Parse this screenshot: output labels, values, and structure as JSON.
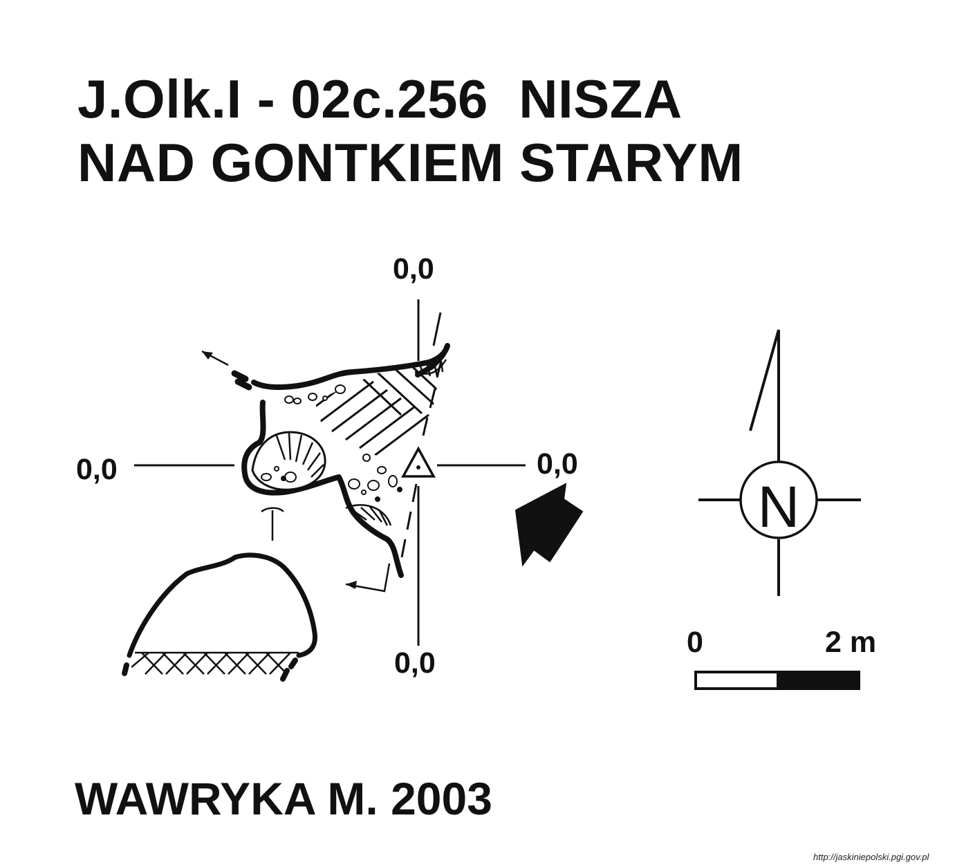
{
  "title": {
    "line1": "J.Olk.I - 02c.256  NISZA",
    "line2": "NAD GONTKIEM STARYM"
  },
  "reference_points": {
    "top": "0,0",
    "left": "0,0",
    "right": "0,0",
    "bottom": "0,0"
  },
  "north_arrow": {
    "label": "N"
  },
  "scale_bar": {
    "start_label": "0",
    "end_label": "2 m"
  },
  "author": "WAWRYKA M. 2003",
  "source": "http://jaskiniepolski.pgi.gov.pl",
  "colors": {
    "ink": "#111111",
    "background": "#ffffff"
  },
  "icons": [
    "survey-station-triangle-icon",
    "entrance-arrow-icon",
    "north-arrow-icon",
    "pick-symbol-icon"
  ]
}
